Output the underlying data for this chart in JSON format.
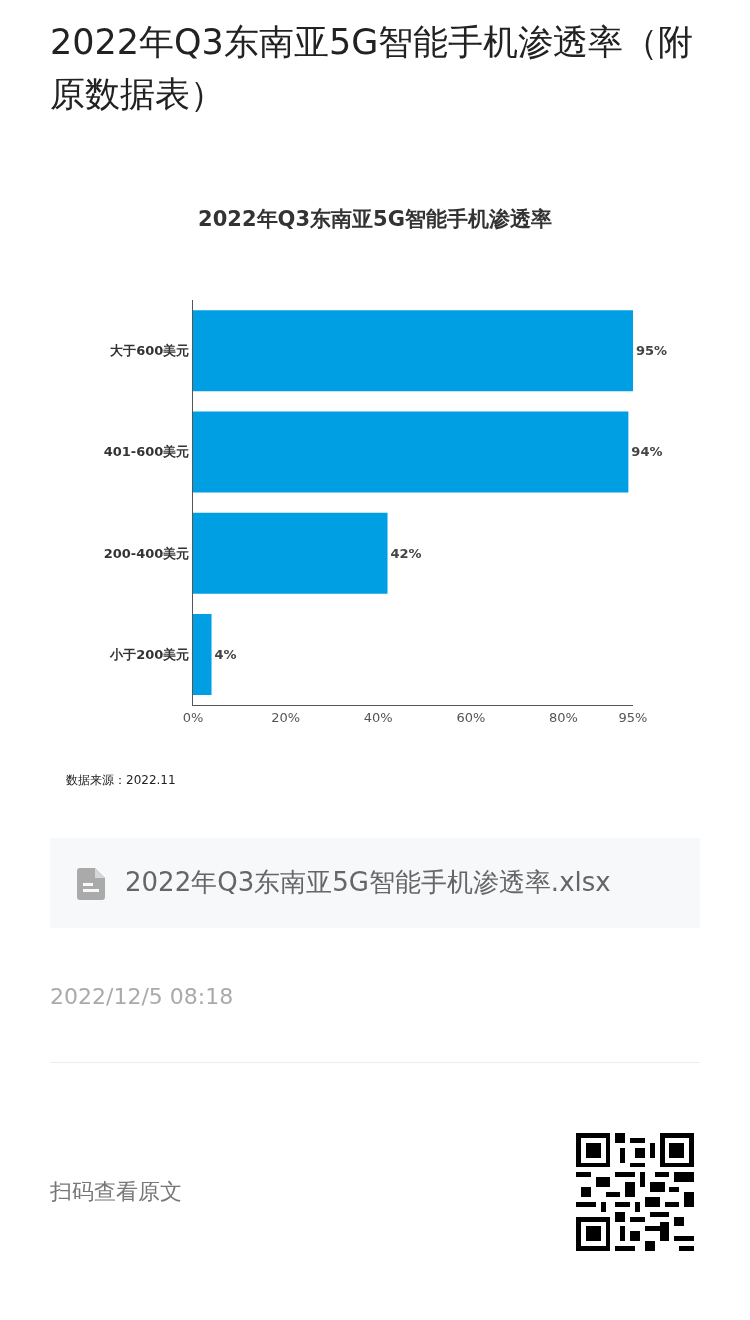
{
  "chart_data": {
    "type": "bar",
    "orientation": "horizontal",
    "title": "2022年Q3东南亚5G智能手机渗透率（附原数据表）",
    "subtitle": "2022年Q3东南亚5G智能手机渗透率",
    "categories": [
      "大于600美元",
      "401-600美元",
      "200-400美元",
      "小于200美元"
    ],
    "values": [
      95,
      94,
      42,
      4
    ],
    "value_labels": [
      "95%",
      "94%",
      "42%",
      "4%"
    ],
    "color": "#009fe3",
    "xlim": [
      0,
      95
    ],
    "xticks": [
      {
        "value": 0,
        "label": "0%"
      },
      {
        "value": 20,
        "label": "20%"
      },
      {
        "value": 40,
        "label": "40%"
      },
      {
        "value": 60,
        "label": "60%"
      },
      {
        "value": 80,
        "label": "80%"
      },
      {
        "value": 95,
        "label": "95%"
      }
    ],
    "annotations": [
      "数据来源：2022.11",
      "2022年Q3东南亚5G智能手机渗透率.xlsx",
      "2022/12/5 08:18",
      "扫码查看原文"
    ]
  }
}
